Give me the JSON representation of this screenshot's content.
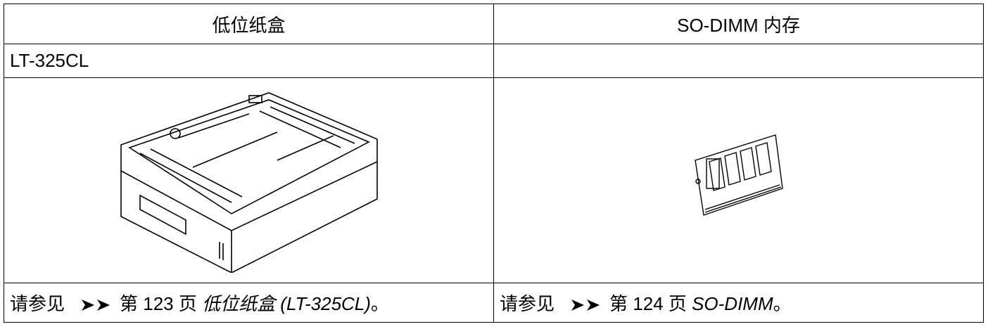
{
  "table": {
    "header": [
      "低位纸盒",
      "SO-DIMM 内存"
    ],
    "model": [
      "LT-325CL"
    ],
    "refs": [
      {
        "prefix": "请参见",
        "page": "第 123 页",
        "link": "低位纸盒 (LT-325CL)",
        "end": "。"
      },
      {
        "prefix": "请参见",
        "page": "第 124 页",
        "link": "SO-DIMM",
        "end": "。"
      }
    ]
  }
}
